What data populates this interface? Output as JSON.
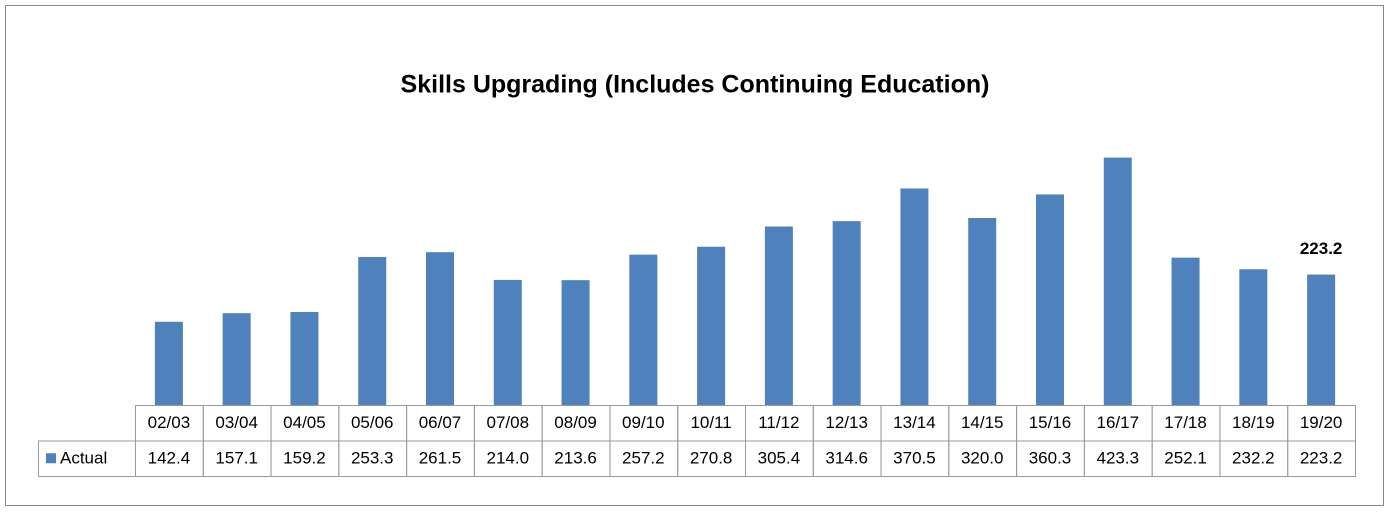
{
  "chart_data": {
    "type": "bar",
    "title": "Skills Upgrading (Includes Continuing Education)",
    "categories": [
      "02/03",
      "03/04",
      "04/05",
      "05/06",
      "06/07",
      "07/08",
      "08/09",
      "09/10",
      "10/11",
      "11/12",
      "12/13",
      "13/14",
      "14/15",
      "15/16",
      "16/17",
      "17/18",
      "18/19",
      "19/20"
    ],
    "series": [
      {
        "name": "Actual",
        "color": "#4f81bd",
        "values": [
          142.4,
          157.1,
          159.2,
          253.3,
          261.5,
          214.0,
          213.6,
          257.2,
          270.8,
          305.4,
          314.6,
          370.5,
          320.0,
          360.3,
          423.3,
          252.1,
          232.2,
          223.2
        ],
        "value_labels": [
          "142.4",
          "157.1",
          "159.2",
          "253.3",
          "261.5",
          "214.0",
          "213.6",
          "257.2",
          "270.8",
          "305.4",
          "314.6",
          "370.5",
          "320.0",
          "360.3",
          "423.3",
          "252.1",
          "232.2",
          "223.2"
        ]
      }
    ],
    "ylim": [
      0,
      450
    ]
  }
}
